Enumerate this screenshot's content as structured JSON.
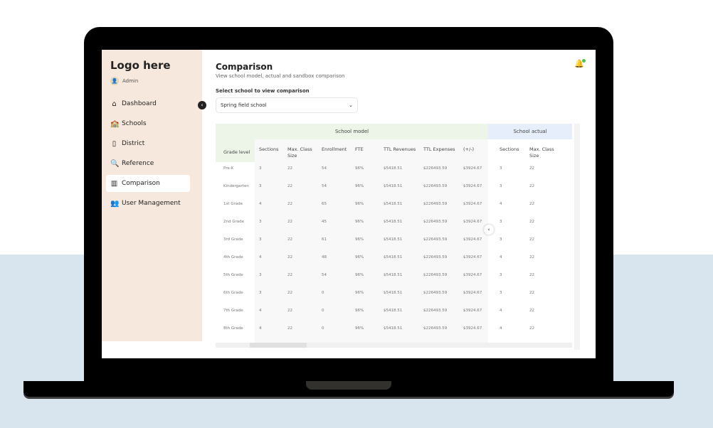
{
  "app": {
    "logo": "Logo here",
    "user": "Admin"
  },
  "sidebar": {
    "items": [
      {
        "label": "Dashboard",
        "icon": "home-icon",
        "glyph": "⌂"
      },
      {
        "label": "Schools",
        "icon": "school-icon",
        "glyph": "🏫"
      },
      {
        "label": "District",
        "icon": "map-icon",
        "glyph": "▯"
      },
      {
        "label": "Reference",
        "icon": "reference-search-icon",
        "glyph": "🔍"
      },
      {
        "label": "Comparison",
        "icon": "chart-icon",
        "glyph": "▥",
        "active": true
      },
      {
        "label": "User Management",
        "icon": "users-icon",
        "glyph": "👥"
      }
    ]
  },
  "page": {
    "title": "Comparison",
    "subtitle": "View school model, actual and sandbox comparison",
    "select_label": "Select school to view comparison",
    "selected_school": "Spring field school"
  },
  "colors": {
    "sidebar": "#f6e8dc",
    "model_header": "#edf5e9",
    "actual_header": "#e6eefc",
    "notification_dot": "#4cc34c"
  },
  "table": {
    "groups": [
      "School model",
      "School actual"
    ],
    "columns": [
      "Grade level",
      "Sections",
      "Max. Class Size",
      "Enrollment",
      "FTE",
      "TTL Revenues",
      "TTL Expenses",
      "(+/-)",
      "Sections",
      "Max. Class Size"
    ],
    "rows": [
      [
        "Pre-K",
        "3",
        "22",
        "54",
        "96%",
        "$5418.51",
        "$226493.59",
        "$3924.67",
        "3",
        "22"
      ],
      [
        "Kindergarten",
        "3",
        "22",
        "54",
        "96%",
        "$5418.51",
        "$226493.59",
        "$3924.67",
        "3",
        "22"
      ],
      [
        "1st Grade",
        "4",
        "22",
        "65",
        "96%",
        "$5418.51",
        "$226493.59",
        "$3924.67",
        "4",
        "22"
      ],
      [
        "2nd Grade",
        "3",
        "22",
        "45",
        "96%",
        "$5418.51",
        "$226493.59",
        "$3924.67",
        "3",
        "22"
      ],
      [
        "3rd Grade",
        "3",
        "22",
        "61",
        "96%",
        "$5418.51",
        "$226493.59",
        "$3924.67",
        "3",
        "22"
      ],
      [
        "4th Grade",
        "4",
        "22",
        "48",
        "96%",
        "$5418.51",
        "$226493.59",
        "$3924.67",
        "4",
        "22"
      ],
      [
        "5th Grade",
        "3",
        "22",
        "54",
        "96%",
        "$5418.51",
        "$226493.59",
        "$3924.67",
        "3",
        "22"
      ],
      [
        "6th Grade",
        "3",
        "22",
        "0",
        "96%",
        "$5418.51",
        "$226493.59",
        "$3924.67",
        "3",
        "22"
      ],
      [
        "7th Grade",
        "4",
        "22",
        "0",
        "96%",
        "$5418.51",
        "$226493.59",
        "$3924.67",
        "4",
        "22"
      ],
      [
        "8th Grade",
        "4",
        "22",
        "0",
        "96%",
        "$5418.51",
        "$226493.59",
        "$3924.67",
        "4",
        "22"
      ]
    ]
  }
}
